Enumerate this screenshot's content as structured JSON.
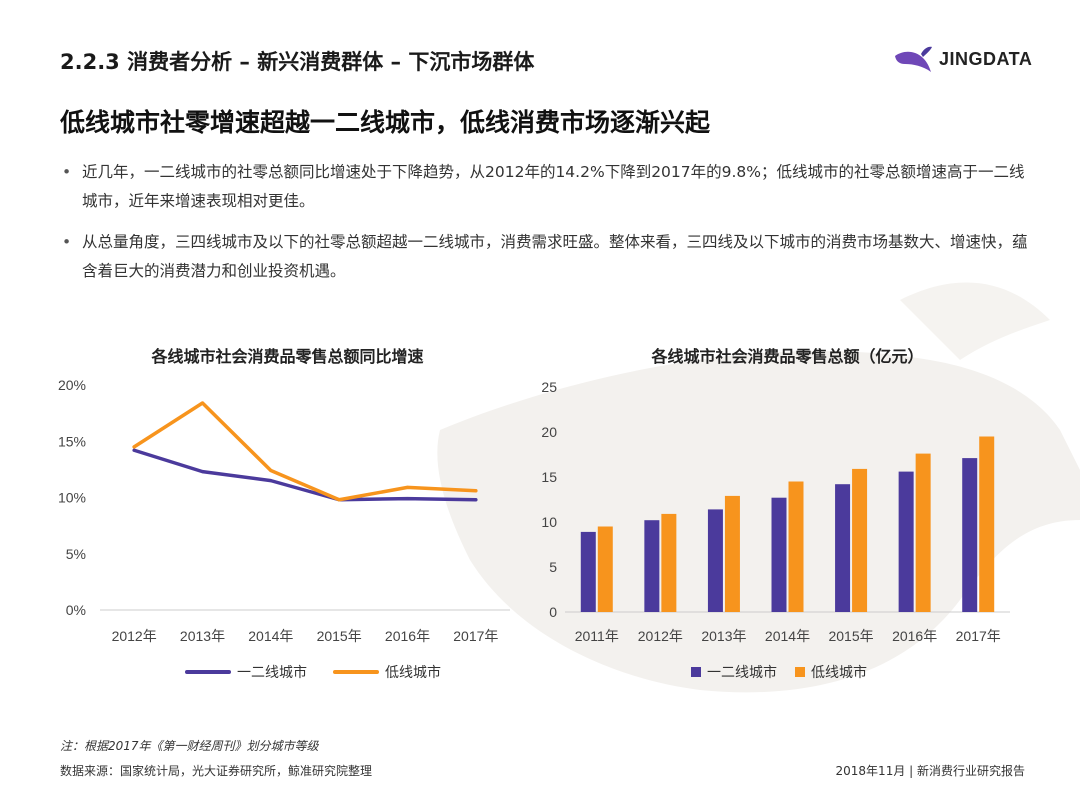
{
  "header": {
    "section_title": "2.2.3 消费者分析 – 新兴消费群体 – 下沉市场群体",
    "logo_text": "JINGDATA",
    "logo_icon": "whale-icon"
  },
  "headline": "低线城市社零增速超越一二线城市，低线消费市场逐渐兴起",
  "bullets": [
    "近几年，一二线城市的社零总额同比增速处于下降趋势，从2012年的14.2%下降到2017年的9.8%；低线城市的社零总额增速高于一二线城市，近年来增速表现相对更佳。",
    "从总量角度，三四线城市及以下的社零总额超越一二线城市，消费需求旺盛。整体来看，三四线及以下城市的消费市场基数大、增速快，蕴含着巨大的消费潜力和创业投资机遇。"
  ],
  "colors": {
    "tier12": "#4b3a9c",
    "lowtier": "#f7941d"
  },
  "chart_data": [
    {
      "type": "line",
      "title": "各线城市社会消费品零售总额同比增速",
      "categories": [
        "2012年",
        "2013年",
        "2014年",
        "2015年",
        "2016年",
        "2017年"
      ],
      "y_ticks": [
        "0%",
        "5%",
        "10%",
        "15%",
        "20%"
      ],
      "ylim": [
        0,
        20
      ],
      "series": [
        {
          "name": "一二线城市",
          "values": [
            14.2,
            12.3,
            11.5,
            9.8,
            9.9,
            9.8
          ]
        },
        {
          "name": "低线城市",
          "values": [
            14.5,
            18.4,
            12.4,
            9.8,
            10.9,
            10.6
          ]
        }
      ],
      "legend_position": "bottom"
    },
    {
      "type": "bar",
      "title": "各线城市社会消费品零售总额（亿元）",
      "categories": [
        "2011年",
        "2012年",
        "2013年",
        "2014年",
        "2015年",
        "2016年",
        "2017年"
      ],
      "y_ticks": [
        "0",
        "5",
        "10",
        "15",
        "20",
        "25"
      ],
      "ylim": [
        0,
        25
      ],
      "series": [
        {
          "name": "一二线城市",
          "values": [
            8.9,
            10.2,
            11.4,
            12.7,
            14.2,
            15.6,
            17.1
          ]
        },
        {
          "name": "低线城市",
          "values": [
            9.5,
            10.9,
            12.9,
            14.5,
            15.9,
            17.6,
            19.5
          ]
        }
      ],
      "legend_position": "bottom"
    }
  ],
  "footnote": "注：根据2017年《第一财经周刊》划分城市等级",
  "source": "数据来源：国家统计局，光大证券研究所，鲸准研究院整理",
  "footer": "2018年11月 | 新消费行业研究报告"
}
